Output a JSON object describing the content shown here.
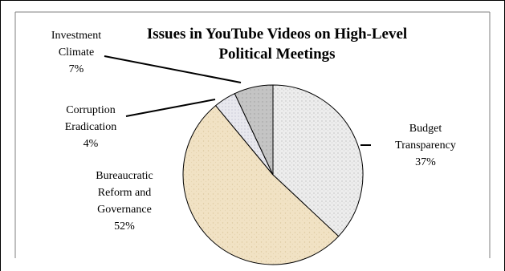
{
  "chart_data": {
    "type": "pie",
    "title_lines": [
      "Issues in YouTube Videos on High-Level",
      "Political Meetings"
    ],
    "slices": [
      {
        "label_lines": [
          "Budget",
          "Transparency"
        ],
        "value": 37,
        "value_label": "37%",
        "color": "#ececec"
      },
      {
        "label_lines": [
          "Bureaucratic",
          "Reform and",
          "Governance"
        ],
        "value": 52,
        "value_label": "52%",
        "color": "#f2e4c8"
      },
      {
        "label_lines": [
          "Corruption",
          "Eradication"
        ],
        "value": 4,
        "value_label": "4%",
        "color": "#e9e9ee"
      },
      {
        "label_lines": [
          "Investment",
          "Climate"
        ],
        "value": 7,
        "value_label": "7%",
        "color": "#c6c6c6"
      }
    ],
    "start_angle": "12 o'clock",
    "direction": "clockwise",
    "legend": "none"
  }
}
